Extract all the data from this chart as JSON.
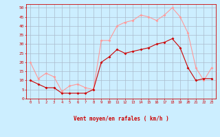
{
  "hours": [
    0,
    1,
    2,
    3,
    4,
    5,
    6,
    7,
    8,
    9,
    10,
    11,
    12,
    13,
    14,
    15,
    16,
    17,
    18,
    19,
    20,
    21,
    22,
    23
  ],
  "wind_avg": [
    10,
    8,
    6,
    6,
    3,
    3,
    3,
    3,
    5,
    20,
    23,
    27,
    25,
    26,
    27,
    28,
    30,
    31,
    33,
    28,
    17,
    10,
    11,
    11
  ],
  "wind_gust": [
    20,
    11,
    14,
    12,
    4,
    7,
    8,
    6,
    5,
    32,
    32,
    40,
    42,
    43,
    46,
    45,
    43,
    46,
    50,
    45,
    36,
    17,
    10,
    17
  ],
  "arrows": [
    "↙",
    "↙",
    "↘",
    "↘",
    "↗",
    "↑",
    "→",
    "↗",
    "←",
    "↙",
    "↙",
    "↙",
    "↙",
    "↙",
    "↙",
    "↙",
    "↙",
    "↙",
    "↙",
    "↙",
    "↙",
    "↙",
    "↙",
    "↙"
  ],
  "bg_color": "#cceeff",
  "grid_color": "#aabbcc",
  "line_avg_color": "#cc0000",
  "line_gust_color": "#ff9999",
  "xlabel": "Vent moyen/en rafales ( km/h )",
  "xlabel_color": "#cc0000",
  "ylim": [
    0,
    52
  ],
  "yticks": [
    0,
    5,
    10,
    15,
    20,
    25,
    30,
    35,
    40,
    45,
    50
  ],
  "tick_color": "#cc0000",
  "axis_color": "#cc0000"
}
